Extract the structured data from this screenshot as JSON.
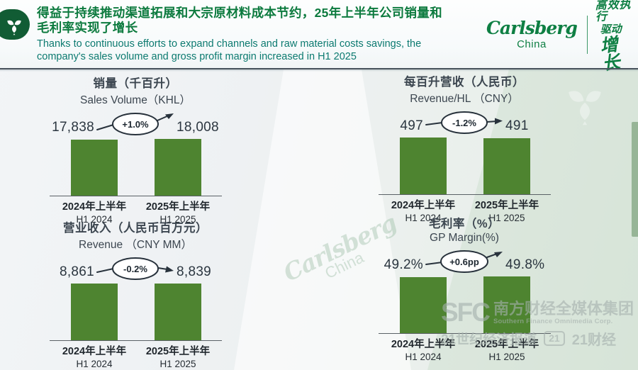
{
  "colors": {
    "bar": "#4e8430",
    "brand_green": "#0e7f43",
    "title_green": "#0c7a3e",
    "subtitle_teal": "#0c7a70",
    "chart_title": "#3c4650"
  },
  "header": {
    "title_zh_line1": "得益于持续推动渠道拓展和大宗原材料成本节约，25年上半年公司销量和",
    "title_zh_line2": "毛利率实现了增长",
    "subtitle_en_line1": "Thanks to continuous efforts to expand channels and raw material costs savings, the",
    "subtitle_en_line2": "company's sales volume and gross profit margin increased in H1 2025",
    "brand": {
      "wordmark": "Carlsberg",
      "region": "China",
      "slogan_line1": "高效执行",
      "slogan_line2_a": "驱动",
      "slogan_line2_b": "增长"
    }
  },
  "chart_data": [
    {
      "type": "bar",
      "title": "销量（千百升）",
      "subtitle": "Sales Volume（KHL）",
      "categories_zh": [
        "2024年上半年",
        "2025年上半年"
      ],
      "categories_en": [
        "H1 2024",
        "H1 2025"
      ],
      "values": [
        17838,
        18008
      ],
      "value_labels": [
        "17,838",
        "18,008"
      ],
      "change_label": "+1.0%",
      "ylim": [
        0,
        18008
      ],
      "grid": false,
      "legend": false
    },
    {
      "type": "bar",
      "title": "每百升营收（人民币）",
      "subtitle": "Revenue/HL （CNY）",
      "categories_zh": [
        "2024年上半年",
        "2025年上半年"
      ],
      "categories_en": [
        "H1 2024",
        "H1 2025"
      ],
      "values": [
        497,
        491
      ],
      "value_labels": [
        "497",
        "491"
      ],
      "change_label": "-1.2%",
      "ylim": [
        0,
        497
      ],
      "grid": false,
      "legend": false
    },
    {
      "type": "bar",
      "title": "营业收入（人民币百万元）",
      "subtitle": "Revenue （CNY MM）",
      "categories_zh": [
        "2024年上半年",
        "2025年上半年"
      ],
      "categories_en": [
        "H1 2024",
        "H1 2025"
      ],
      "values": [
        8861,
        8839
      ],
      "value_labels": [
        "8,861",
        "8,839"
      ],
      "change_label": "-0.2%",
      "ylim": [
        0,
        8861
      ],
      "grid": false,
      "legend": false
    },
    {
      "type": "bar",
      "title": "毛利率（%）",
      "subtitle": "GP Margin(%)",
      "categories_zh": [
        "2024年上半年",
        "2025年上半年"
      ],
      "categories_en": [
        "H1 2024",
        "H1 2025"
      ],
      "values": [
        49.2,
        49.8
      ],
      "value_labels": [
        "49.2%",
        "49.8%"
      ],
      "change_label": "+0.6pp",
      "ylim": [
        0,
        49.8
      ],
      "grid": false,
      "legend": false
    }
  ],
  "watermarks": {
    "center_brand": {
      "line1": "Carlsberg",
      "line2": "China"
    },
    "sfc": {
      "logo": "SFC",
      "org_zh": "南方财经全媒体集团",
      "org_en": "Southern Finance Omnimedia Corp.",
      "row2_left": "21世纪经济报道",
      "badge": "21",
      "row2_right": "21财经"
    }
  }
}
